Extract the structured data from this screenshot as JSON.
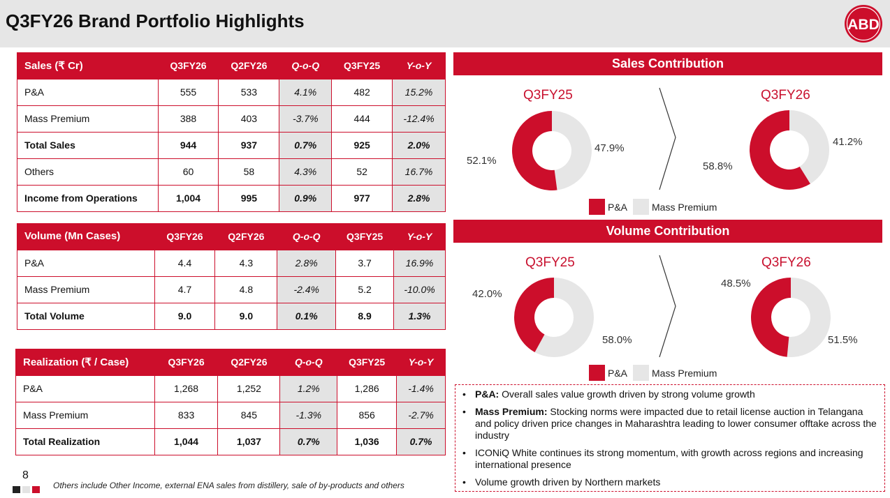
{
  "title": "Q3FY26 Brand Portfolio Highlights",
  "logo_text": "ABD",
  "colors": {
    "accent": "#cc0e2b",
    "muted": "#e6e6e6"
  },
  "tables": {
    "sales": {
      "headers": [
        "Sales (₹ Cr)",
        "Q3FY26",
        "Q2FY26",
        "Q-o-Q",
        "Q3FY25",
        "Y-o-Y"
      ],
      "rows": [
        [
          "P&A",
          "555",
          "533",
          "4.1%",
          "482",
          "15.2%"
        ],
        [
          "Mass Premium",
          "388",
          "403",
          "-3.7%",
          "444",
          "-12.4%"
        ],
        [
          "Total Sales",
          "944",
          "937",
          "0.7%",
          "925",
          "2.0%"
        ],
        [
          "Others",
          "60",
          "58",
          "4.3%",
          "52",
          "16.7%"
        ],
        [
          "Income from Operations",
          "1,004",
          "995",
          "0.9%",
          "977",
          "2.8%"
        ]
      ]
    },
    "volume": {
      "headers": [
        "Volume (Mn Cases)",
        "Q3FY26",
        "Q2FY26",
        "Q-o-Q",
        "Q3FY25",
        "Y-o-Y"
      ],
      "rows": [
        [
          "P&A",
          "4.4",
          "4.3",
          "2.8%",
          "3.7",
          "16.9%"
        ],
        [
          "Mass Premium",
          "4.7",
          "4.8",
          "-2.4%",
          "5.2",
          "-10.0%"
        ],
        [
          "Total Volume",
          "9.0",
          "9.0",
          "0.1%",
          "8.9",
          "1.3%"
        ]
      ]
    },
    "realization": {
      "headers": [
        "Realization (₹ / Case)",
        "Q3FY26",
        "Q2FY26",
        "Q-o-Q",
        "Q3FY25",
        "Y-o-Y"
      ],
      "rows": [
        [
          "P&A",
          "1,268",
          "1,252",
          "1.2%",
          "1,286",
          "-1.4%"
        ],
        [
          "Mass Premium",
          "833",
          "845",
          "-1.3%",
          "856",
          "-2.7%"
        ],
        [
          "Total Realization",
          "1,044",
          "1,037",
          "0.7%",
          "1,036",
          "0.7%"
        ]
      ]
    }
  },
  "charts": {
    "sales_title": "Sales Contribution",
    "volume_title": "Volume Contribution",
    "legend": {
      "pa": "P&A",
      "mp": "Mass Premium"
    }
  },
  "chart_data": [
    {
      "type": "pie",
      "title": "Q3FY25",
      "group": "Sales Contribution",
      "labels": [
        "P&A",
        "Mass Premium"
      ],
      "values": [
        52.1,
        47.9
      ],
      "value_labels": [
        "52.1%",
        "47.9%"
      ]
    },
    {
      "type": "pie",
      "title": "Q3FY26",
      "group": "Sales Contribution",
      "labels": [
        "P&A",
        "Mass Premium"
      ],
      "values": [
        58.8,
        41.2
      ],
      "value_labels": [
        "58.8%",
        "41.2%"
      ]
    },
    {
      "type": "pie",
      "title": "Q3FY25",
      "group": "Volume Contribution",
      "labels": [
        "P&A",
        "Mass Premium"
      ],
      "values": [
        42.0,
        58.0
      ],
      "value_labels": [
        "42.0%",
        "58.0%"
      ]
    },
    {
      "type": "pie",
      "title": "Q3FY26",
      "group": "Volume Contribution",
      "labels": [
        "P&A",
        "Mass Premium"
      ],
      "values": [
        48.5,
        51.5
      ],
      "value_labels": [
        "48.5%",
        "51.5%"
      ]
    }
  ],
  "notes": [
    {
      "bold": "P&A:",
      "text": " Overall sales value growth driven by strong volume growth"
    },
    {
      "bold": "Mass Premium:",
      "text": " Stocking norms were impacted due to retail license auction in Telangana and policy driven price changes in Maharashtra leading to lower consumer offtake across the industry"
    },
    {
      "bold": "",
      "text": "ICONiQ White continues its strong momentum, with growth across regions and increasing international presence"
    },
    {
      "bold": "",
      "text": "Volume growth driven by Northern markets"
    }
  ],
  "page_number": "8",
  "footnote": "Others include Other Income, external ENA sales from distillery, sale of by-products and others"
}
